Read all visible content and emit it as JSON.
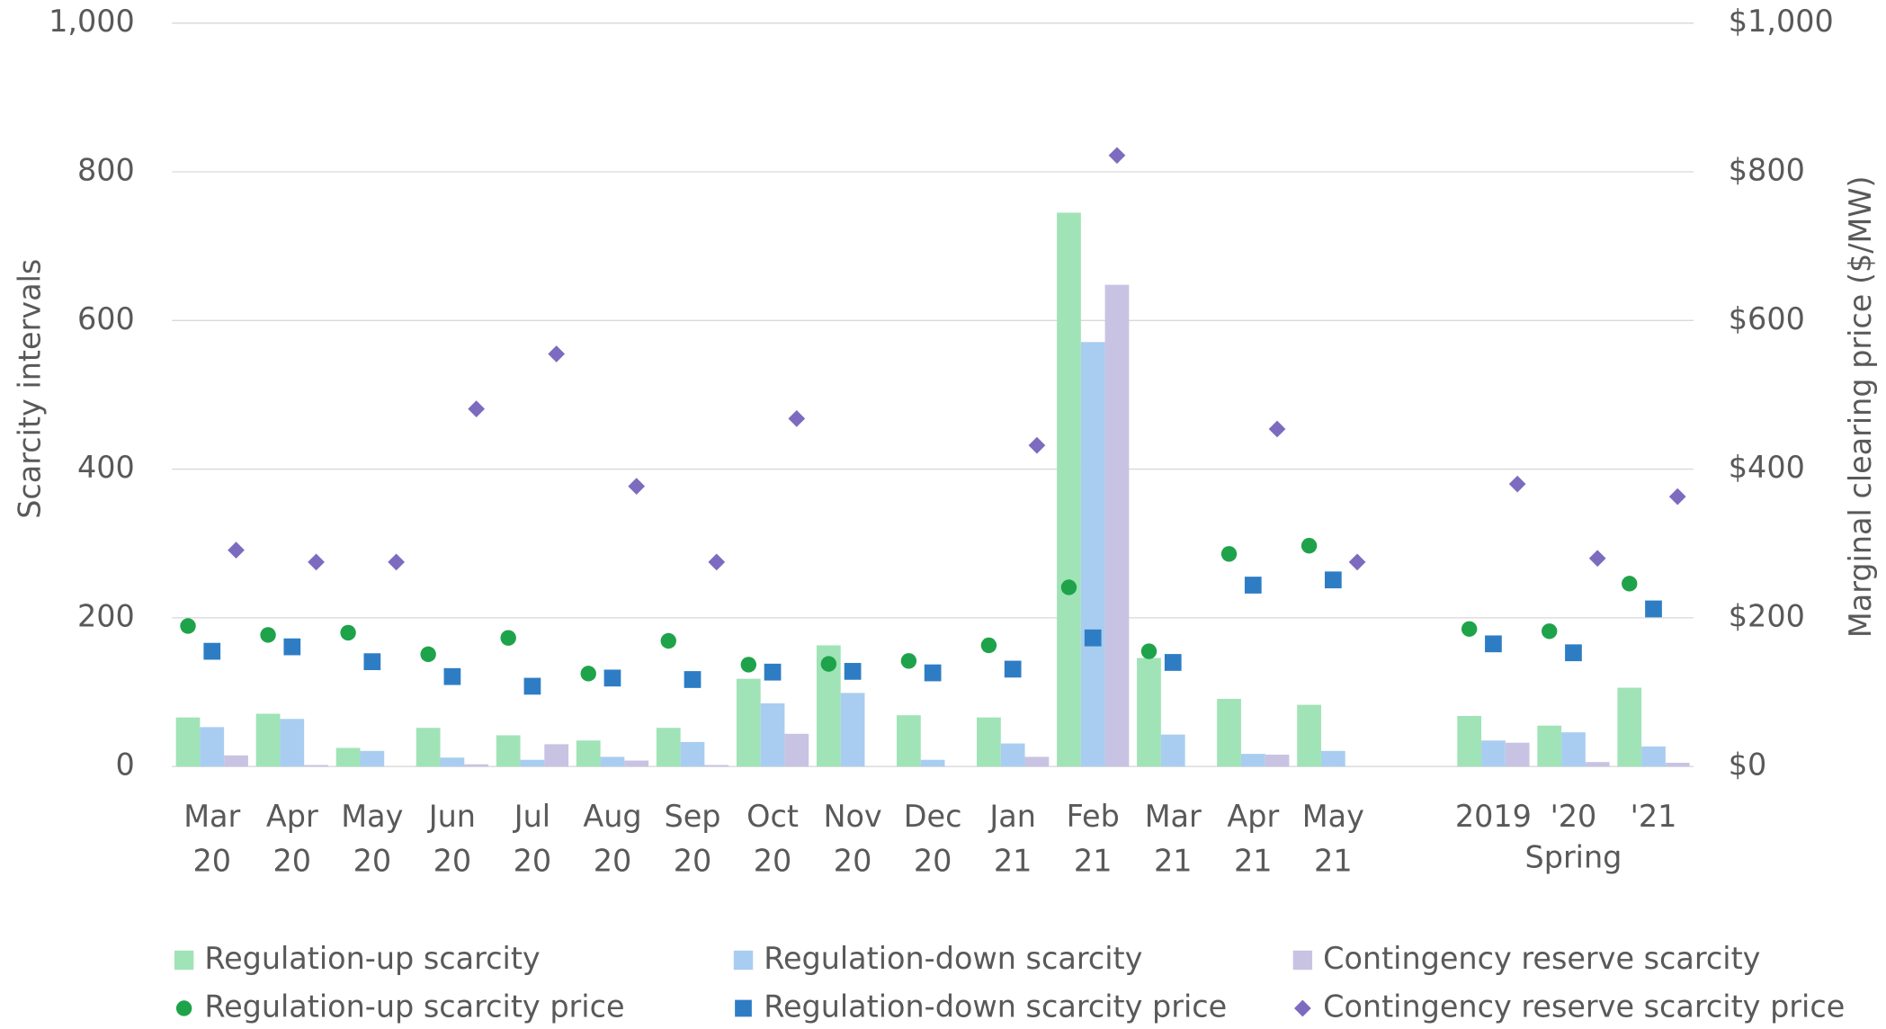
{
  "chart_data": {
    "type": "bar",
    "categories": [
      [
        "Mar",
        "20"
      ],
      [
        "Apr",
        "20"
      ],
      [
        "May",
        "20"
      ],
      [
        "Jun",
        "20"
      ],
      [
        "Jul",
        "20"
      ],
      [
        "Aug",
        "20"
      ],
      [
        "Sep",
        "20"
      ],
      [
        "Oct",
        "20"
      ],
      [
        "Nov",
        "20"
      ],
      [
        "Dec",
        "20"
      ],
      [
        "Jan",
        "21"
      ],
      [
        "Feb",
        "21"
      ],
      [
        "Mar",
        "21"
      ],
      [
        "Apr",
        "21"
      ],
      [
        "May",
        "21"
      ],
      null,
      [
        "2019"
      ],
      [
        "'20"
      ],
      [
        "'21"
      ]
    ],
    "group_label": "Spring",
    "y_label": "Scarcity intervals",
    "y2_label": "Marginal clearing price ($/MW)",
    "ylim": [
      0,
      1000
    ],
    "yticks": [
      0,
      200,
      400,
      600,
      800,
      {
        "value": 1000,
        "label": "1,000"
      }
    ],
    "y2lim": [
      0,
      1000
    ],
    "y2ticks": [
      {
        "value": 0,
        "label": "$0"
      },
      {
        "value": 200,
        "label": "$200"
      },
      {
        "value": 400,
        "label": "$400"
      },
      {
        "value": 600,
        "label": "$600"
      },
      {
        "value": 800,
        "label": "$800"
      },
      {
        "value": 1000,
        "label": "$1,000"
      }
    ],
    "grid": true,
    "series": [
      {
        "name": "Regulation-up scarcity",
        "color": "#a0e3b7",
        "kind": "bar",
        "values": [
          66,
          71,
          25,
          52,
          42,
          35,
          52,
          118,
          163,
          69,
          66,
          745,
          146,
          91,
          83,
          null,
          68,
          55,
          106
        ]
      },
      {
        "name": "Regulation-down scarcity",
        "color": "#a9cdf0",
        "kind": "bar",
        "values": [
          53,
          64,
          21,
          12,
          9,
          13,
          33,
          85,
          99,
          9,
          31,
          571,
          43,
          17,
          21,
          null,
          35,
          46,
          27
        ]
      },
      {
        "name": "Contingency reserve scarcity",
        "color": "#c8c3e3",
        "kind": "bar",
        "values": [
          15,
          2,
          0,
          3,
          30,
          8,
          2,
          44,
          0,
          0,
          13,
          648,
          0,
          16,
          0,
          null,
          32,
          6,
          5
        ]
      },
      {
        "name": "Regulation-up scarcity price",
        "color": "#1ea34a",
        "kind": "circle",
        "axis": "y2",
        "values": [
          189,
          177,
          180,
          151,
          173,
          125,
          169,
          137,
          138,
          142,
          163,
          241,
          155,
          286,
          297,
          null,
          185,
          182,
          246
        ]
      },
      {
        "name": "Regulation-down scarcity price",
        "color": "#2e7dc4",
        "kind": "square",
        "axis": "y2",
        "values": [
          155,
          161,
          141,
          121,
          108,
          119,
          117,
          127,
          128,
          126,
          131,
          173,
          140,
          244,
          251,
          null,
          165,
          153,
          212
        ]
      },
      {
        "name": "Contingency reserve scarcity price",
        "color": "#7d6bbf",
        "kind": "diamond",
        "axis": "y2",
        "values": [
          291,
          275,
          275,
          481,
          555,
          377,
          275,
          468,
          null,
          null,
          432,
          822,
          null,
          454,
          275,
          null,
          380,
          280,
          363
        ]
      }
    ]
  }
}
